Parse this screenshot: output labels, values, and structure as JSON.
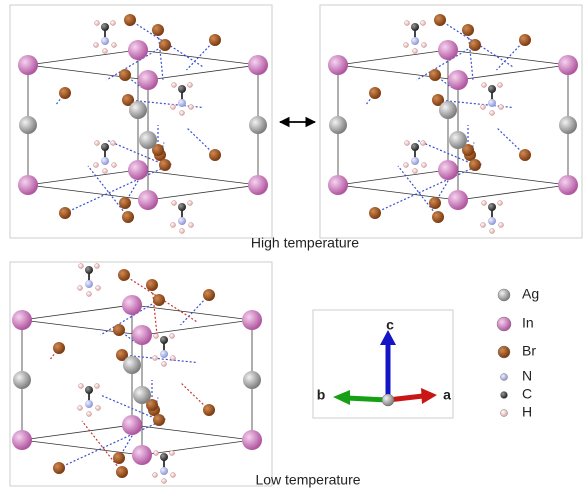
{
  "captions": {
    "high": "High temperature",
    "low": "Low temperature"
  },
  "axes": {
    "c": "c",
    "b": "b",
    "a": "a"
  },
  "legend": [
    "Ag",
    "In",
    "Br",
    "N",
    "C",
    "H"
  ]
}
